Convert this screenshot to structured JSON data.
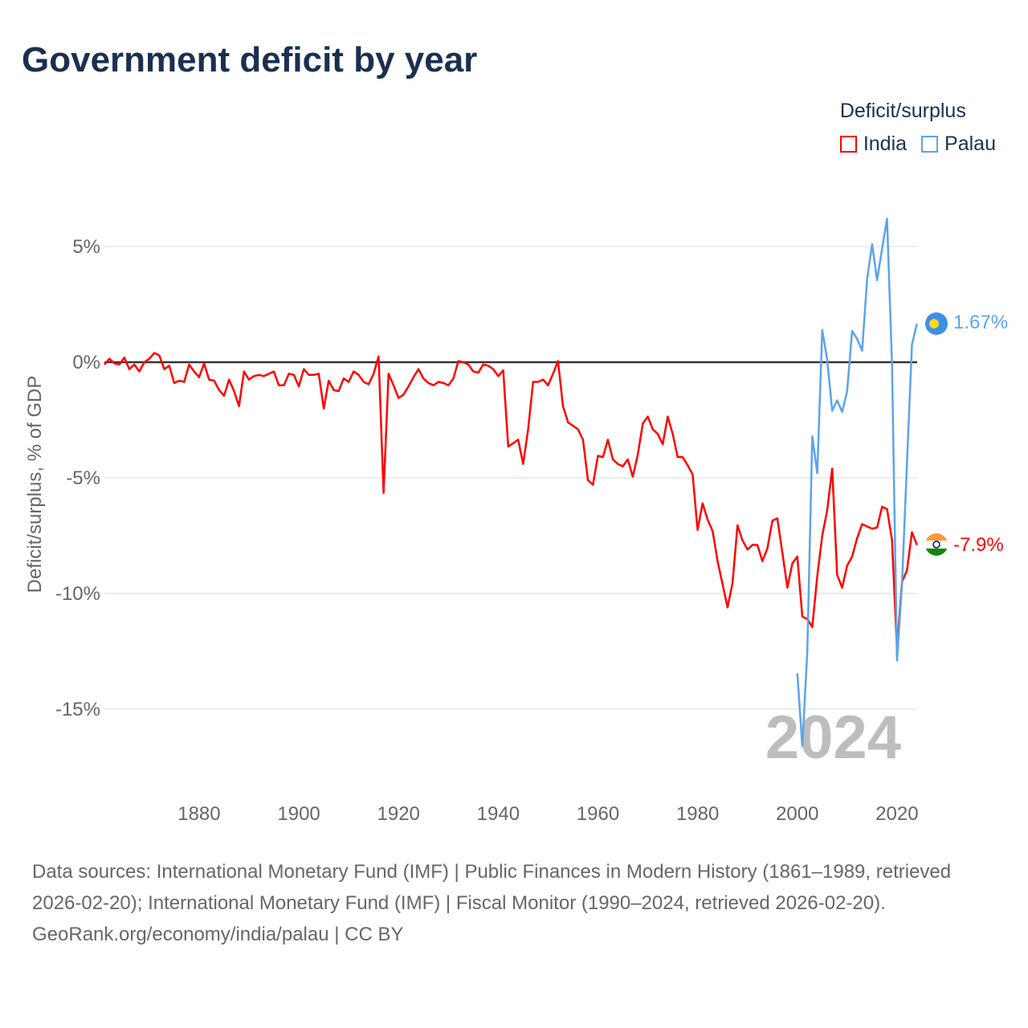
{
  "title": "Government deficit by year",
  "legend": {
    "title": "Deficit/surplus",
    "items": [
      {
        "name": "India",
        "color": "#ff0000"
      },
      {
        "name": "Palau",
        "color": "#5ba4ea"
      }
    ]
  },
  "year_label": "2024",
  "end_labels": {
    "india": "-7.9%",
    "palau": "1.67%"
  },
  "footer": {
    "sources": "Data sources: International Monetary Fund (IMF) | Public Finances in Modern History (1861–1989, retrieved 2026-02-20); International Monetary Fund (IMF) | Fiscal Monitor (1990–2024, retrieved 2026-02-20).",
    "credit": "GeoRank.org/economy/india/palau | CC BY"
  },
  "chart_data": {
    "type": "line",
    "title": "Government deficit by year",
    "xlabel": "",
    "ylabel": "Deficit/surplus, % of GDP",
    "xlim": [
      1861,
      2024
    ],
    "ylim": [
      -17,
      6.5
    ],
    "x_ticks": [
      1880,
      1900,
      1920,
      1940,
      1960,
      1980,
      2000,
      2020
    ],
    "x_tick_labels": [
      "1880",
      "1900",
      "1920",
      "1940",
      "1960",
      "1980",
      "2000",
      "2020"
    ],
    "y_ticks": [
      5,
      0,
      -5,
      -10,
      -15
    ],
    "y_tick_labels": [
      "5%",
      "0%",
      "-5%",
      "-10%",
      "-15%"
    ],
    "grid": true,
    "legend_position": "top-right",
    "series": [
      {
        "name": "India",
        "color": "#ff0000",
        "start_year": 1861,
        "values": [
          -0.1,
          0.15,
          -0.05,
          -0.1,
          0.2,
          -0.3,
          -0.1,
          -0.4,
          0,
          0.15,
          0.4,
          0.3,
          -0.3,
          -0.15,
          -0.9,
          -0.8,
          -0.85,
          -0.1,
          -0.4,
          -0.65,
          -0.05,
          -0.75,
          -0.8,
          -1.2,
          -1.45,
          -0.75,
          -1.25,
          -1.9,
          -0.4,
          -0.75,
          -0.6,
          -0.55,
          -0.6,
          -0.5,
          -0.4,
          -1.0,
          -1.0,
          -0.5,
          -0.55,
          -1.05,
          -0.3,
          -0.55,
          -0.55,
          -0.5,
          -2.0,
          -0.8,
          -1.2,
          -1.25,
          -0.7,
          -0.85,
          -0.4,
          -0.55,
          -0.85,
          -0.95,
          -0.5,
          0.25,
          -5.65,
          -0.5,
          -1.0,
          -1.55,
          -1.4,
          -1.05,
          -0.65,
          -0.3,
          -0.7,
          -0.9,
          -1.0,
          -0.85,
          -0.9,
          -1.0,
          -0.7,
          0.05,
          0,
          -0.1,
          -0.4,
          -0.45,
          -0.1,
          -0.15,
          -0.3,
          -0.6,
          -0.35,
          -3.65,
          -3.5,
          -3.35,
          -4.4,
          -2.9,
          -0.85,
          -0.85,
          -0.75,
          -1.0,
          -0.5,
          0.05,
          -1.9,
          -2.6,
          -2.75,
          -2.9,
          -3.35,
          -5.1,
          -5.3,
          -4.05,
          -4.1,
          -3.35,
          -4.2,
          -4.4,
          -4.5,
          -4.2,
          -4.95,
          -4.0,
          -2.65,
          -2.35,
          -2.9,
          -3.1,
          -3.55,
          -2.35,
          -3.1,
          -4.1,
          -4.1,
          -4.45,
          -4.85,
          -7.25,
          -6.1,
          -6.8,
          -7.3,
          -8.6,
          -9.6,
          -10.6,
          -9.55,
          -7.05,
          -7.7,
          -8.1,
          -7.9,
          -7.9,
          -8.6,
          -8.05,
          -6.85,
          -6.75,
          -8.25,
          -9.75,
          -8.7,
          -8.4,
          -11.0,
          -11.1,
          -11.45,
          -9.25,
          -7.5,
          -6.4,
          -4.6,
          -9.2,
          -9.75,
          -8.8,
          -8.4,
          -7.6,
          -7.0,
          -7.1,
          -7.2,
          -7.15,
          -6.25,
          -6.35,
          -7.7,
          -12.4,
          -9.5,
          -9.0,
          -7.35,
          -7.9
        ]
      },
      {
        "name": "Palau",
        "color": "#5ba4ea",
        "start_year": 2000,
        "values": [
          -13.45,
          -16.6,
          -12.5,
          -3.2,
          -4.8,
          1.4,
          0.1,
          -2.1,
          -1.65,
          -2.15,
          -1.25,
          1.35,
          1.0,
          0.5,
          3.6,
          5.1,
          3.55,
          4.9,
          6.2,
          -0.15,
          -12.9,
          -9.6,
          -4.35,
          0.75,
          1.67
        ]
      }
    ]
  }
}
